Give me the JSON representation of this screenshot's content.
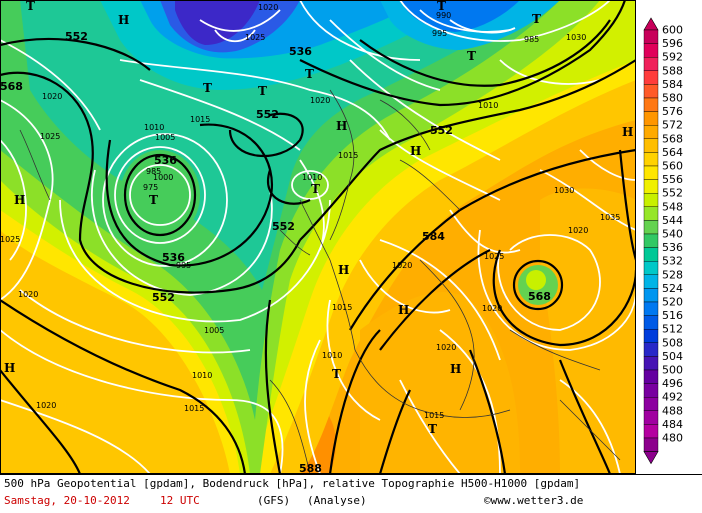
{
  "map": {
    "pressure_labels": [
      "1020",
      "1025",
      "990",
      "995",
      "985",
      "1015",
      "1010",
      "1005",
      "1000",
      "975",
      "985",
      "995",
      "1030",
      "1010",
      "1020",
      "1015",
      "1010",
      "1020",
      "1025",
      "1020",
      "1005",
      "1010",
      "1015",
      "1020",
      "1010",
      "1015",
      "1020",
      "1025",
      "1020",
      "1020",
      "1020",
      "1025",
      "1015",
      "1030",
      "1035"
    ],
    "geopotential_labels": [
      "552",
      "568",
      "536",
      "552",
      "536",
      "552",
      "536",
      "552",
      "552",
      "584",
      "568",
      "588"
    ],
    "highs": [
      "H",
      "H",
      "H",
      "H",
      "H",
      "H",
      "H",
      "H",
      "H"
    ],
    "lows": [
      "T",
      "T",
      "T",
      "T",
      "T",
      "T",
      "T",
      "T",
      "T",
      "T",
      "T"
    ]
  },
  "scale": {
    "values": [
      "600",
      "596",
      "592",
      "588",
      "584",
      "580",
      "576",
      "572",
      "568",
      "564",
      "560",
      "556",
      "552",
      "548",
      "544",
      "540",
      "536",
      "532",
      "528",
      "524",
      "520",
      "516",
      "512",
      "508",
      "504",
      "500",
      "496",
      "492",
      "488",
      "484",
      "480"
    ],
    "colors": [
      "#c8005a",
      "#e0005a",
      "#f0205a",
      "#ff3c3c",
      "#ff5a28",
      "#ff7814",
      "#ff9600",
      "#ffaa00",
      "#ffbe00",
      "#ffd200",
      "#ffe600",
      "#f0f000",
      "#c8f000",
      "#96e628",
      "#64d250",
      "#32c864",
      "#00c896",
      "#00c8c8",
      "#00b4e6",
      "#0096f0",
      "#0078f0",
      "#005ae6",
      "#003cdc",
      "#2828c8",
      "#4614b4",
      "#6400a0",
      "#7800a0",
      "#8c00a0",
      "#a000a0",
      "#b400a0",
      "#8c008c"
    ]
  },
  "footer": {
    "line1": "500 hPa Geopotential [gpdam], Bodendruck [hPa], relative Topographie H500-H1000 [gpdam]",
    "date": "Samstag, 20-10-2012",
    "time": "12 UTC",
    "model": "(GFS)",
    "run": "(Analyse)",
    "credit": "©www.wetter3.de"
  }
}
